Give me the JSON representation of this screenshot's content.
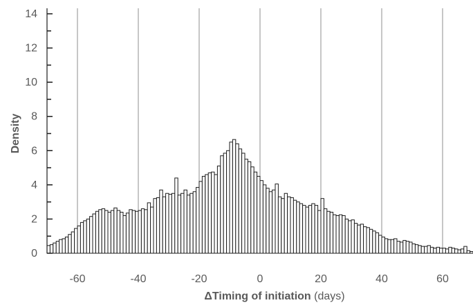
{
  "chart_data": {
    "type": "bar",
    "title": "",
    "xlabel_bold": "ΔTiming of initiation",
    "xlabel_unit": " (days)",
    "ylabel": "Density",
    "xlim": [
      -70,
      70
    ],
    "ylim": [
      0,
      14
    ],
    "x_ticks": [
      "-60",
      "-40",
      "-20",
      "0",
      "20",
      "40",
      "60"
    ],
    "y_ticks": [
      "0",
      "2",
      "4",
      "6",
      "8",
      "10",
      "12",
      "14"
    ],
    "vertical_grid": true,
    "bin_width": 1,
    "bin_start": -70,
    "values": [
      0.45,
      0.5,
      0.6,
      0.7,
      0.8,
      0.85,
      0.95,
      1.1,
      1.25,
      1.45,
      1.6,
      1.8,
      1.9,
      2.0,
      2.15,
      2.3,
      2.45,
      2.55,
      2.6,
      2.5,
      2.4,
      2.5,
      2.65,
      2.5,
      2.4,
      2.2,
      2.35,
      2.55,
      2.5,
      2.45,
      2.5,
      2.6,
      2.55,
      2.95,
      2.7,
      3.2,
      3.25,
      3.7,
      3.3,
      3.5,
      3.45,
      3.5,
      4.4,
      3.4,
      3.5,
      3.7,
      3.4,
      3.5,
      3.6,
      3.85,
      4.2,
      4.5,
      4.6,
      4.7,
      4.75,
      4.6,
      5.1,
      5.7,
      5.85,
      6.0,
      6.5,
      6.65,
      6.4,
      6.1,
      5.85,
      5.5,
      5.35,
      5.05,
      4.75,
      4.5,
      4.25,
      4.0,
      3.8,
      3.6,
      3.7,
      4.05,
      3.3,
      3.2,
      3.5,
      3.3,
      3.25,
      3.1,
      3.0,
      2.9,
      2.8,
      2.7,
      2.8,
      2.9,
      2.8,
      2.5,
      3.2,
      2.6,
      2.45,
      2.4,
      2.25,
      2.2,
      2.25,
      2.2,
      2.0,
      1.9,
      1.95,
      1.75,
      1.65,
      1.7,
      1.55,
      1.5,
      1.4,
      1.3,
      1.2,
      1.05,
      0.95,
      0.85,
      0.8,
      0.8,
      0.85,
      0.7,
      0.65,
      0.75,
      0.7,
      0.65,
      0.55,
      0.5,
      0.45,
      0.4,
      0.4,
      0.45,
      0.35,
      0.3,
      0.35,
      0.3,
      0.3,
      0.25,
      0.35,
      0.3,
      0.25,
      0.2,
      0.25,
      0.4,
      0.15,
      0.1
    ]
  }
}
